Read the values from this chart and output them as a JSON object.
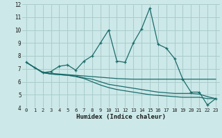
{
  "xlabel": "Humidex (Indice chaleur)",
  "xlim": [
    -0.5,
    23.5
  ],
  "ylim": [
    4,
    12
  ],
  "yticks": [
    4,
    5,
    6,
    7,
    8,
    9,
    10,
    11,
    12
  ],
  "xticks": [
    0,
    1,
    2,
    3,
    4,
    5,
    6,
    7,
    8,
    9,
    10,
    11,
    12,
    13,
    14,
    15,
    16,
    17,
    18,
    19,
    20,
    21,
    22,
    23
  ],
  "background_color": "#cce8e8",
  "grid_color": "#aacccc",
  "line_color": "#1a6b6b",
  "line1_x": [
    0,
    1,
    2,
    3,
    4,
    5,
    6,
    7,
    8,
    9,
    10,
    11,
    12,
    13,
    14,
    15,
    16,
    17,
    18,
    19,
    20,
    21,
    22,
    23
  ],
  "line1_y": [
    7.5,
    7.1,
    6.7,
    6.8,
    7.2,
    7.3,
    6.9,
    7.6,
    8.0,
    9.0,
    10.0,
    7.6,
    7.5,
    9.0,
    10.1,
    11.7,
    8.9,
    8.6,
    7.8,
    6.2,
    5.2,
    5.2,
    4.2,
    4.7
  ],
  "line2_x": [
    0,
    1,
    2,
    3,
    4,
    5,
    6,
    7,
    8,
    9,
    10,
    11,
    12,
    13,
    14,
    15,
    16,
    17,
    18,
    19,
    20,
    21,
    22,
    23
  ],
  "line2_y": [
    7.5,
    7.1,
    6.75,
    6.65,
    6.6,
    6.55,
    6.5,
    6.45,
    6.4,
    6.35,
    6.3,
    6.25,
    6.22,
    6.2,
    6.2,
    6.2,
    6.2,
    6.2,
    6.2,
    6.2,
    6.2,
    6.2,
    6.2,
    6.2
  ],
  "line3_x": [
    0,
    1,
    2,
    3,
    4,
    5,
    6,
    7,
    8,
    9,
    10,
    11,
    12,
    13,
    14,
    15,
    16,
    17,
    18,
    19,
    20,
    21,
    22,
    23
  ],
  "line3_y": [
    7.5,
    7.1,
    6.7,
    6.6,
    6.55,
    6.5,
    6.45,
    6.3,
    6.2,
    6.0,
    5.8,
    5.7,
    5.6,
    5.5,
    5.4,
    5.3,
    5.2,
    5.15,
    5.1,
    5.1,
    5.1,
    5.05,
    4.85,
    4.7
  ],
  "line4_x": [
    0,
    1,
    2,
    3,
    4,
    5,
    6,
    7,
    8,
    9,
    10,
    11,
    12,
    13,
    14,
    15,
    16,
    17,
    18,
    19,
    20,
    21,
    22,
    23
  ],
  "line4_y": [
    7.5,
    7.1,
    6.7,
    6.6,
    6.55,
    6.5,
    6.4,
    6.25,
    6.0,
    5.75,
    5.55,
    5.4,
    5.3,
    5.2,
    5.1,
    5.0,
    4.95,
    4.9,
    4.85,
    4.8,
    4.8,
    4.8,
    4.7,
    4.7
  ]
}
